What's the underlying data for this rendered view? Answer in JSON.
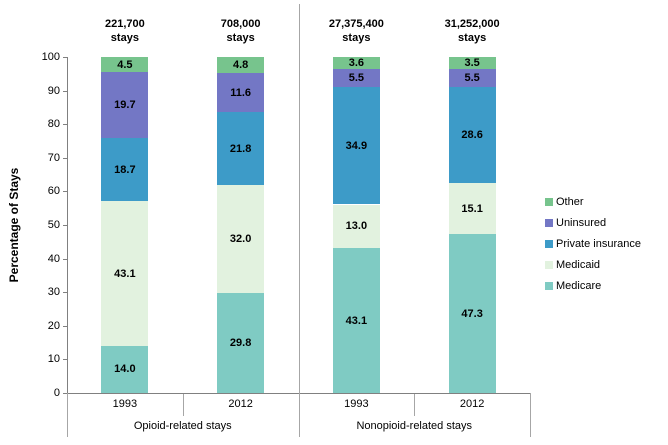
{
  "chart_data": {
    "type": "bar",
    "stacked": true,
    "title": "",
    "ylabel": "Percentage of Stays",
    "ylim": [
      0,
      100
    ],
    "ytick_step": 10,
    "grid": false,
    "categories": [
      "1993",
      "2012",
      "1993",
      "2012"
    ],
    "groups": [
      {
        "label": "Opioid-related stays",
        "bar_indices": [
          0,
          1
        ]
      },
      {
        "label": "Nonopioid-related stays",
        "bar_indices": [
          2,
          3
        ]
      }
    ],
    "bar_totals": [
      {
        "count": "221,700",
        "unit": "stays"
      },
      {
        "count": "708,000",
        "unit": "stays"
      },
      {
        "count": "27,375,400",
        "unit": "stays"
      },
      {
        "count": "31,252,000",
        "unit": "stays"
      }
    ],
    "series": [
      {
        "name": "Medicare",
        "color": "#7FCBC3",
        "values": [
          14.0,
          29.8,
          43.1,
          47.3
        ]
      },
      {
        "name": "Medicaid",
        "color": "#E2F2DF",
        "values": [
          43.1,
          32.0,
          13.0,
          15.1
        ]
      },
      {
        "name": "Private insurance",
        "color": "#3D9BC8",
        "values": [
          18.7,
          21.8,
          34.9,
          28.6
        ]
      },
      {
        "name": "Uninsured",
        "color": "#7377C5",
        "values": [
          19.7,
          11.6,
          5.5,
          5.5
        ]
      },
      {
        "name": "Other",
        "color": "#77C48D",
        "values": [
          4.5,
          4.8,
          3.6,
          3.5
        ]
      }
    ],
    "legend": {
      "position": "right",
      "entries": [
        "Other",
        "Uninsured",
        "Private insurance",
        "Medicaid",
        "Medicare"
      ]
    },
    "axis_colors": {
      "axis": "#808080",
      "divider": "#A6A6A6"
    },
    "label_color": "#000000"
  }
}
